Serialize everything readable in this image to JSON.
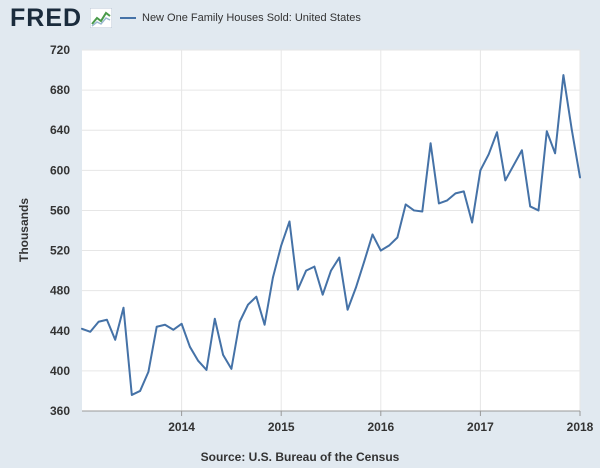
{
  "header": {
    "logo_text": "FRED",
    "legend_label": "New One Family Houses Sold: United States"
  },
  "footer": {
    "source": "Source: U.S. Bureau of the Census"
  },
  "colors": {
    "background": "#e1e9f0",
    "plot_background": "#ffffff",
    "series_line": "#4572a7",
    "grid": "#e6e6e6"
  },
  "chart_data": {
    "type": "line",
    "title": "",
    "xlabel": "",
    "ylabel": "Thousands",
    "ylim": [
      360,
      720
    ],
    "yticks": [
      360,
      400,
      440,
      480,
      520,
      560,
      600,
      640,
      680,
      720
    ],
    "xticks": [
      {
        "label": "2014",
        "x": "2014-01"
      },
      {
        "label": "2015",
        "x": "2015-01"
      },
      {
        "label": "2016",
        "x": "2016-01"
      },
      {
        "label": "2017",
        "x": "2017-01"
      },
      {
        "label": "2018",
        "x": "2018-01"
      }
    ],
    "xlim": [
      "2013-01",
      "2018-01"
    ],
    "grid": true,
    "legend_position": "top-left",
    "series": [
      {
        "name": "New One Family Houses Sold: United States",
        "x": [
          "2013-01",
          "2013-02",
          "2013-03",
          "2013-04",
          "2013-05",
          "2013-06",
          "2013-07",
          "2013-08",
          "2013-09",
          "2013-10",
          "2013-11",
          "2013-12",
          "2014-01",
          "2014-02",
          "2014-03",
          "2014-04",
          "2014-05",
          "2014-06",
          "2014-07",
          "2014-08",
          "2014-09",
          "2014-10",
          "2014-11",
          "2014-12",
          "2015-01",
          "2015-02",
          "2015-03",
          "2015-04",
          "2015-05",
          "2015-06",
          "2015-07",
          "2015-08",
          "2015-09",
          "2015-10",
          "2015-11",
          "2015-12",
          "2016-01",
          "2016-02",
          "2016-03",
          "2016-04",
          "2016-05",
          "2016-06",
          "2016-07",
          "2016-08",
          "2016-09",
          "2016-10",
          "2016-11",
          "2016-12",
          "2017-01",
          "2017-02",
          "2017-03",
          "2017-04",
          "2017-05",
          "2017-06",
          "2017-07",
          "2017-08",
          "2017-09",
          "2017-10",
          "2017-11",
          "2017-12",
          "2018-01"
        ],
        "values": [
          442,
          439,
          449,
          451,
          431,
          463,
          376,
          380,
          399,
          444,
          446,
          441,
          447,
          424,
          410,
          401,
          452,
          416,
          402,
          449,
          466,
          474,
          446,
          493,
          525,
          549,
          481,
          500,
          504,
          476,
          500,
          513,
          461,
          483,
          509,
          536,
          520,
          525,
          533,
          566,
          560,
          559,
          627,
          567,
          570,
          577,
          579,
          548,
          600,
          616,
          638,
          590,
          605,
          620,
          564,
          560,
          639,
          617,
          695,
          641,
          593
        ]
      }
    ]
  }
}
